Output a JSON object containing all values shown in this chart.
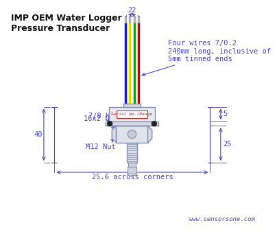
{
  "title": "IMP OEM Water Logger\nPressure Transducer",
  "background_color": "#ffffff",
  "dim_color": "#4444cc",
  "wire_colors": [
    "#1a1acc",
    "#dddd00",
    "#00aa00",
    "#cc0000"
  ],
  "label_color": "#4444cc",
  "body_color": "#f0f0f8",
  "body_edge_color": "#8090b0",
  "serial_text": "Serial No./Range",
  "annotation_wire": "Four wires 7/0.2\n240mm long, inclusive of\n5mm tinned ends",
  "label_78hex": "7/8 Hex",
  "label_oring": "16x2 O-ring",
  "label_m12": "M12 Nut",
  "dim_22": "22",
  "dim_5": "5",
  "dim_25": "25",
  "dim_40": "40",
  "dim_25_6": "25.6 across corners",
  "website": "www.sensorsone.com",
  "font_size": 7.5,
  "title_font_size": 9
}
